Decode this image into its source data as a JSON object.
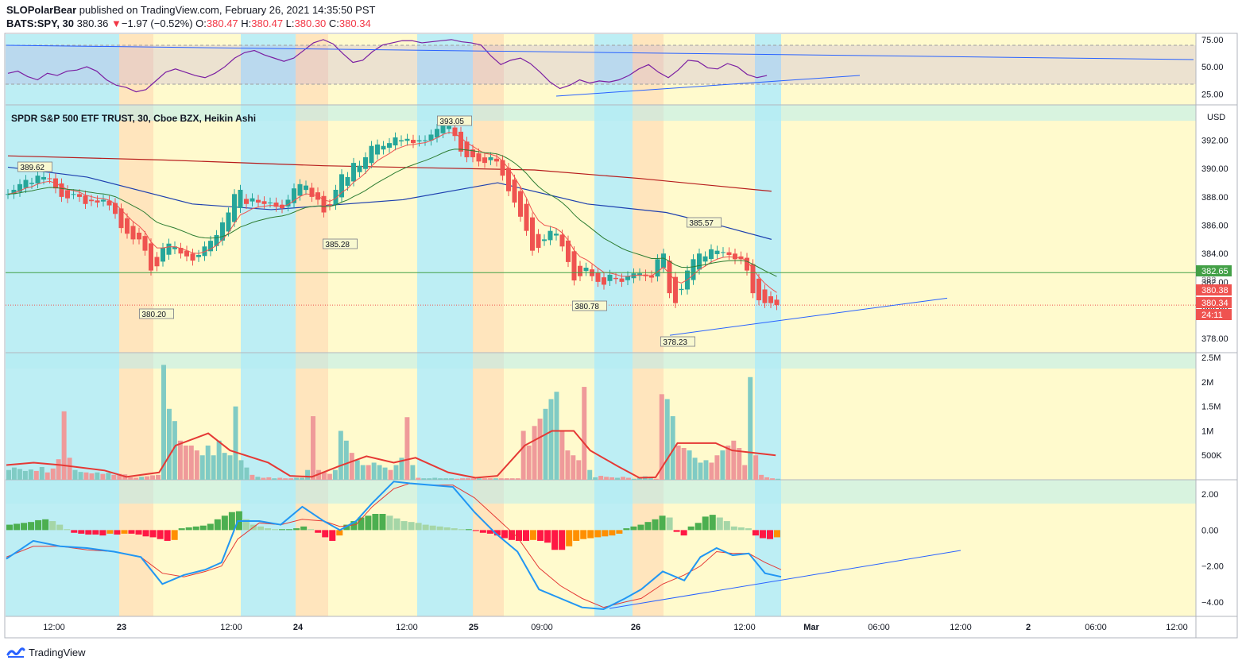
{
  "header": {
    "author": "SLOPolarBear",
    "published_text": "published on TradingView.com, February 26, 2021 14:35:50 PST",
    "symbol": "BATS:SPY, 30",
    "last": "380.36",
    "change": "−1.97 (−0.52%)",
    "o_label": "O:",
    "o": "380.47",
    "h_label": "H:",
    "h": "380.47",
    "l_label": "L:",
    "l": "380.30",
    "c_label": "C:",
    "c": "380.34",
    "down_arrow": "▼"
  },
  "footer": {
    "brand": "TradingView",
    "logo_icon": "tradingview-logo-icon"
  },
  "colors": {
    "up": "#26a69a",
    "down": "#ef5350",
    "bg": "#ffffff",
    "zone_blue": "#b2ebf2",
    "zone_yellow": "#fff9c4",
    "zone_orange": "#ffe0b2",
    "ma_red": "#b71c1c",
    "ma_blue": "#1e40af",
    "ma_green": "#2e7d32",
    "ma_pink": "#ef5350",
    "trendline": "#2962ff",
    "rsi": "#7b1fa2",
    "macd": "#2196f3",
    "signal": "#e53935"
  },
  "chart_data": [
    {
      "type": "line",
      "name": "RSI",
      "yticks": [
        "75.00",
        "50.00",
        "25.00"
      ],
      "ylim": [
        15,
        80
      ],
      "values": [
        44,
        46,
        41,
        38,
        44,
        42,
        46,
        47,
        50,
        46,
        38,
        33,
        31,
        27,
        29,
        37,
        45,
        48,
        45,
        42,
        40,
        44,
        50,
        58,
        63,
        65,
        61,
        58,
        55,
        58,
        65,
        72,
        75,
        71,
        62,
        54,
        56,
        64,
        70,
        72,
        74,
        74,
        72,
        73,
        74,
        75,
        73,
        72,
        70,
        60,
        52,
        56,
        58,
        53,
        45,
        36,
        30,
        33,
        38,
        35,
        37,
        36,
        38,
        42,
        48,
        52,
        45,
        40,
        47,
        56,
        55,
        49,
        48,
        53,
        50,
        43,
        40,
        42
      ]
    },
    {
      "type": "candlestick",
      "name": "SPDR S&P 500 ETF TRUST, 30, Cboe BZX, Heikin Ashi",
      "title": "SPDR S&P 500 ETF TRUST, 30, Cboe BZX, Heikin Ashi",
      "currency": "USD",
      "ylim": [
        377.0,
        394.5
      ],
      "yticks": [
        "392.00",
        "390.00",
        "388.00",
        "386.00",
        "384.00",
        "382.00",
        "380.00",
        "378.00"
      ],
      "x_labels": [
        "12:00",
        "23",
        "12:00",
        "24",
        "12:00",
        "25",
        "09:00",
        "26",
        "12:00",
        "Mar",
        "06:00",
        "12:00",
        "2",
        "06:00",
        "12:00"
      ],
      "closes": [
        388.2,
        388.5,
        388.9,
        389.2,
        389.0,
        389.5,
        389.4,
        389.3,
        388.6,
        388.0,
        387.9,
        388.2,
        388.0,
        387.5,
        387.7,
        387.6,
        387.8,
        387.4,
        386.8,
        385.8,
        385.4,
        385.0,
        385.0,
        384.2,
        382.8,
        383.1,
        384.4,
        384.7,
        384.5,
        384.0,
        383.8,
        383.5,
        383.9,
        384.5,
        384.9,
        385.3,
        386.2,
        386.9,
        388.2,
        388.5,
        387.5,
        387.9,
        387.6,
        387.5,
        387.6,
        387.3,
        387.2,
        387.8,
        388.6,
        388.9,
        388.8,
        388.0,
        387.8,
        386.9,
        387.4,
        388.5,
        389.6,
        389.4,
        390.4,
        390.2,
        390.8,
        391.6,
        391.7,
        391.6,
        391.8,
        392.2,
        392.0,
        392.1,
        391.8,
        392.0,
        392.0,
        392.4,
        392.8,
        393.1,
        393.0,
        392.3,
        391.2,
        390.8,
        390.8,
        390.5,
        390.4,
        390.8,
        390.5,
        389.5,
        388.4,
        387.6,
        386.6,
        385.6,
        384.2,
        384.4,
        385.0,
        385.6,
        385.4,
        384.5,
        383.4,
        382.1,
        382.4,
        383.0,
        382.4,
        382.0,
        381.8,
        382.5,
        382.2,
        382.0,
        382.4,
        382.6,
        382.6,
        382.4,
        382.3,
        383.6,
        384.0,
        381.2,
        380.5,
        381.5,
        382.8,
        383.6,
        384.0,
        383.8,
        384.3,
        384.2,
        384.1,
        383.9,
        383.6,
        383.6,
        382.8,
        381.2,
        380.7,
        380.5,
        380.5,
        380.36
      ],
      "labels": [
        {
          "text": "389.62"
        },
        {
          "text": "380.20"
        },
        {
          "text": "385.28"
        },
        {
          "text": "393.05"
        },
        {
          "text": "380.78"
        },
        {
          "text": "385.57"
        },
        {
          "text": "378.23"
        }
      ],
      "price_tags": [
        {
          "text": "382.65",
          "kind": "line"
        },
        {
          "text": "380.38",
          "kind": "last"
        },
        {
          "text": "380.34",
          "kind": "last"
        },
        {
          "text": "24:11",
          "kind": "timer"
        }
      ],
      "hline": 382.65,
      "ma_red": [
        [
          0,
          390.9
        ],
        [
          30,
          390.6
        ],
        [
          60,
          390.2
        ],
        [
          100,
          389.9
        ],
        [
          120,
          389.3
        ],
        [
          145,
          388.4
        ]
      ],
      "ma_blue": [
        [
          0,
          390.1
        ],
        [
          15,
          389.4
        ],
        [
          35,
          387.5
        ],
        [
          50,
          387.1
        ],
        [
          75,
          387.8
        ],
        [
          93,
          389.0
        ],
        [
          110,
          387.5
        ],
        [
          125,
          386.9
        ],
        [
          135,
          386.0
        ],
        [
          145,
          385.0
        ]
      ]
    },
    {
      "type": "bar",
      "name": "Volume",
      "yticks": [
        "2.5M",
        "2M",
        "1.5M",
        "1M",
        "500K"
      ],
      "ylim": [
        0,
        2600000
      ],
      "values": [
        200000,
        250000,
        220000,
        180000,
        210000,
        180000,
        260000,
        150000,
        230000,
        420000,
        1400000,
        450000,
        200000,
        160000,
        150000,
        130000,
        150000,
        120000,
        140000,
        100000,
        120000,
        110000,
        50000,
        40000,
        60000,
        70000,
        90000,
        100000,
        2350000,
        1450000,
        1200000,
        800000,
        700000,
        700000,
        600000,
        500000,
        700000,
        500000,
        800000,
        550000,
        500000,
        1500000,
        400000,
        250000,
        100000,
        60000,
        40000,
        50000,
        30000,
        40000,
        30000,
        30000,
        40000,
        40000,
        200000,
        1300000,
        200000,
        150000,
        120000,
        200000,
        1000000,
        800000,
        550000,
        400000,
        300000,
        300000,
        350000,
        300000,
        250000,
        200000,
        300000,
        450000,
        1280000,
        300000,
        40000,
        30000,
        30000,
        40000,
        30000,
        30000,
        30000,
        20000,
        30000,
        30000,
        30000,
        30000,
        30000,
        30000,
        30000,
        30000,
        30000,
        30000,
        30000,
        1000000,
        700000,
        1100000,
        1250000,
        1450000,
        1650000,
        1800000,
        1000000,
        600000,
        500000,
        400000,
        1900000,
        200000,
        50000,
        80000,
        60000,
        50000,
        40000,
        60000,
        40000,
        20000,
        50000,
        70000,
        30000,
        20000,
        1750000,
        1650000,
        1300000,
        700000,
        650000,
        600000,
        450000,
        350000,
        400000,
        350000,
        500000,
        600000,
        700000,
        800000,
        650000,
        300000,
        2100000,
        500000,
        100000,
        50000,
        30000,
        20000
      ],
      "ma_line": [
        [
          0,
          300000
        ],
        [
          5,
          350000
        ],
        [
          10,
          300000
        ],
        [
          18,
          190000
        ],
        [
          22,
          60000
        ],
        [
          28,
          150000
        ],
        [
          31,
          700000
        ],
        [
          37,
          950000
        ],
        [
          41,
          600000
        ],
        [
          48,
          350000
        ],
        [
          52,
          80000
        ],
        [
          56,
          60000
        ],
        [
          61,
          280000
        ],
        [
          66,
          480000
        ],
        [
          71,
          350000
        ],
        [
          75,
          450000
        ],
        [
          81,
          150000
        ],
        [
          86,
          40000
        ],
        [
          90,
          80000
        ],
        [
          95,
          700000
        ],
        [
          100,
          1000000
        ],
        [
          104,
          1000000
        ],
        [
          107,
          600000
        ],
        [
          112,
          280000
        ],
        [
          116,
          40000
        ],
        [
          119,
          50000
        ],
        [
          123,
          750000
        ],
        [
          130,
          750000
        ],
        [
          133,
          600000
        ],
        [
          137,
          550000
        ],
        [
          141,
          500000
        ]
      ]
    },
    {
      "type": "line",
      "name": "MACD",
      "yticks": [
        "2.00",
        "0.00",
        "-2.00",
        "-4.00"
      ],
      "ylim": [
        -4.8,
        2.8
      ],
      "macd": [
        [
          0,
          -1.6
        ],
        [
          5,
          -0.6
        ],
        [
          10,
          -0.9
        ],
        [
          15,
          -1.0
        ],
        [
          20,
          -1.2
        ],
        [
          25,
          -1.5
        ],
        [
          29,
          -3.0
        ],
        [
          33,
          -2.5
        ],
        [
          37,
          -2.2
        ],
        [
          40,
          -1.8
        ],
        [
          43,
          0.5
        ],
        [
          47,
          0.5
        ],
        [
          51,
          0.3
        ],
        [
          55,
          1.3
        ],
        [
          59,
          0.5
        ],
        [
          62,
          0.0
        ],
        [
          65,
          0.5
        ],
        [
          68,
          1.5
        ],
        [
          72,
          2.7
        ],
        [
          75,
          2.6
        ],
        [
          79,
          2.5
        ],
        [
          83,
          2.4
        ],
        [
          87,
          1.0
        ],
        [
          91,
          -0.2
        ],
        [
          95,
          -1.2
        ],
        [
          99,
          -3.3
        ],
        [
          103,
          -3.8
        ],
        [
          107,
          -4.3
        ],
        [
          111,
          -4.4
        ],
        [
          115,
          -3.8
        ],
        [
          118,
          -3.3
        ],
        [
          122,
          -2.3
        ],
        [
          126,
          -2.8
        ],
        [
          129,
          -1.5
        ],
        [
          132,
          -1.0
        ],
        [
          135,
          -1.4
        ],
        [
          138,
          -1.3
        ],
        [
          141,
          -2.4
        ],
        [
          144,
          -2.6
        ]
      ],
      "signal": [
        [
          0,
          -1.5
        ],
        [
          5,
          -0.9
        ],
        [
          10,
          -0.9
        ],
        [
          15,
          -1.1
        ],
        [
          20,
          -1.2
        ],
        [
          25,
          -1.5
        ],
        [
          29,
          -2.4
        ],
        [
          33,
          -2.6
        ],
        [
          37,
          -2.3
        ],
        [
          40,
          -2.0
        ],
        [
          43,
          -0.5
        ],
        [
          47,
          0.4
        ],
        [
          51,
          0.3
        ],
        [
          55,
          0.6
        ],
        [
          59,
          0.5
        ],
        [
          62,
          0.2
        ],
        [
          65,
          0.3
        ],
        [
          68,
          1.3
        ],
        [
          72,
          2.3
        ],
        [
          75,
          2.6
        ],
        [
          79,
          2.5
        ],
        [
          83,
          2.5
        ],
        [
          87,
          1.8
        ],
        [
          91,
          0.7
        ],
        [
          95,
          -0.4
        ],
        [
          99,
          -2.1
        ],
        [
          103,
          -3.1
        ],
        [
          107,
          -3.8
        ],
        [
          111,
          -4.3
        ],
        [
          115,
          -4.0
        ],
        [
          118,
          -3.8
        ],
        [
          122,
          -3.0
        ],
        [
          126,
          -2.5
        ],
        [
          129,
          -2.0
        ],
        [
          132,
          -1.2
        ],
        [
          135,
          -1.3
        ],
        [
          138,
          -1.3
        ],
        [
          141,
          -1.8
        ],
        [
          144,
          -2.2
        ]
      ],
      "histogram": [
        0.3,
        0.35,
        0.4,
        0.45,
        0.55,
        0.6,
        0.5,
        0.3,
        0.05,
        -0.15,
        -0.2,
        -0.25,
        -0.25,
        -0.3,
        -0.2,
        -0.25,
        -0.2,
        -0.2,
        -0.25,
        -0.35,
        -0.4,
        -0.5,
        -0.6,
        -0.55,
        0.1,
        0.15,
        0.2,
        0.25,
        0.35,
        0.6,
        0.8,
        1.0,
        1.05,
        0.6,
        0.3,
        0.2,
        0.1,
        0.05,
        0.05,
        0.05,
        0.1,
        0.2,
        0.05,
        -0.15,
        -0.4,
        -0.6,
        -0.3,
        0.3,
        0.5,
        0.7,
        0.8,
        0.9,
        0.9,
        0.8,
        0.65,
        0.5,
        0.45,
        0.4,
        0.3,
        0.25,
        0.2,
        0.15,
        0.1,
        0.05,
        0.05,
        -0.05,
        -0.15,
        -0.2,
        -0.3,
        -0.45,
        -0.55,
        -0.6,
        -0.6,
        -0.55,
        -0.6,
        -0.7,
        -1.1,
        -1.1,
        -0.9,
        -0.6,
        -0.5,
        -0.45,
        -0.4,
        -0.35,
        -0.3,
        -0.2,
        0.1,
        0.2,
        0.3,
        0.45,
        0.6,
        0.8,
        0.7,
        -0.1,
        -0.3,
        0.2,
        0.4,
        0.75,
        0.85,
        0.7,
        0.5,
        0.2,
        0.15,
        0.1,
        -0.3,
        -0.45,
        -0.5,
        -0.4
      ]
    }
  ]
}
